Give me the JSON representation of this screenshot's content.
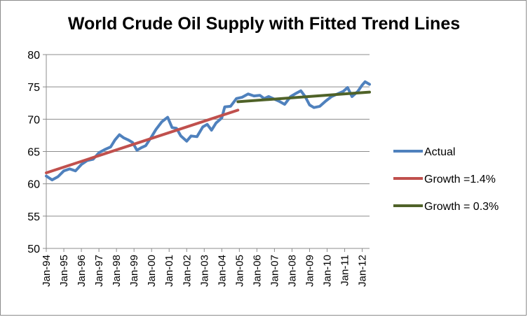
{
  "chart_data": {
    "type": "line",
    "title": "World Crude Oil Supply with Fitted Trend Lines",
    "xlabel": "",
    "ylabel": "",
    "ylim": [
      50,
      80
    ],
    "yticks": [
      50,
      55,
      60,
      65,
      70,
      75,
      80
    ],
    "xlim": [
      "1994-01",
      "2012-06"
    ],
    "xtick_labels": [
      "Jan-94",
      "Jan-95",
      "Jan-96",
      "Jan-97",
      "Jan-98",
      "Jan-99",
      "Jan-00",
      "Jan-01",
      "Jan-02",
      "Jan-03",
      "Jan-04",
      "Jan-05",
      "Jan-06",
      "Jan-07",
      "Jan-08",
      "Jan-09",
      "Jan-10",
      "Jan-11",
      "Jan-12"
    ],
    "xtick_dates": [
      "1994-01",
      "1995-01",
      "1996-01",
      "1997-01",
      "1998-01",
      "1999-01",
      "2000-01",
      "2001-01",
      "2002-01",
      "2003-01",
      "2004-01",
      "2005-01",
      "2006-01",
      "2007-01",
      "2008-01",
      "2009-01",
      "2010-01",
      "2011-01",
      "2012-01"
    ],
    "grid": "horizontal",
    "legend": "right",
    "series": [
      {
        "name": "Actual",
        "color": "#4f81bd",
        "points": [
          [
            "1994-01",
            61.2
          ],
          [
            "1994-05",
            60.6
          ],
          [
            "1994-09",
            61.1
          ],
          [
            "1995-01",
            62.0
          ],
          [
            "1995-05",
            62.3
          ],
          [
            "1995-09",
            62.0
          ],
          [
            "1996-01",
            63.0
          ],
          [
            "1996-05",
            63.6
          ],
          [
            "1996-09",
            63.8
          ],
          [
            "1997-01",
            64.8
          ],
          [
            "1997-05",
            65.3
          ],
          [
            "1997-09",
            65.7
          ],
          [
            "1997-12",
            66.8
          ],
          [
            "1998-03",
            67.6
          ],
          [
            "1998-06",
            67.1
          ],
          [
            "1998-09",
            66.8
          ],
          [
            "1998-12",
            66.4
          ],
          [
            "1999-03",
            65.2
          ],
          [
            "1999-06",
            65.6
          ],
          [
            "1999-09",
            65.9
          ],
          [
            "2000-01",
            67.3
          ],
          [
            "2000-04",
            68.4
          ],
          [
            "2000-08",
            69.6
          ],
          [
            "2000-12",
            70.3
          ],
          [
            "2001-03",
            68.7
          ],
          [
            "2001-06",
            68.6
          ],
          [
            "2001-09",
            67.4
          ],
          [
            "2002-01",
            66.6
          ],
          [
            "2002-04",
            67.4
          ],
          [
            "2002-08",
            67.3
          ],
          [
            "2002-12",
            68.8
          ],
          [
            "2003-03",
            69.2
          ],
          [
            "2003-06",
            68.3
          ],
          [
            "2003-09",
            69.4
          ],
          [
            "2004-01",
            70.2
          ],
          [
            "2004-03",
            71.9
          ],
          [
            "2004-07",
            72.0
          ],
          [
            "2004-11",
            73.2
          ],
          [
            "2005-03",
            73.4
          ],
          [
            "2005-07",
            73.9
          ],
          [
            "2005-11",
            73.6
          ],
          [
            "2006-03",
            73.7
          ],
          [
            "2006-06",
            73.2
          ],
          [
            "2006-09",
            73.5
          ],
          [
            "2007-01",
            73.1
          ],
          [
            "2007-04",
            72.8
          ],
          [
            "2007-08",
            72.3
          ],
          [
            "2007-12",
            73.5
          ],
          [
            "2008-03",
            73.9
          ],
          [
            "2008-07",
            74.4
          ],
          [
            "2008-10",
            73.5
          ],
          [
            "2009-01",
            72.2
          ],
          [
            "2009-04",
            71.8
          ],
          [
            "2009-08",
            72.0
          ],
          [
            "2009-12",
            72.8
          ],
          [
            "2010-04",
            73.5
          ],
          [
            "2010-08",
            73.9
          ],
          [
            "2010-12",
            74.3
          ],
          [
            "2011-03",
            74.9
          ],
          [
            "2011-06",
            73.5
          ],
          [
            "2011-10",
            74.3
          ],
          [
            "2012-01",
            75.3
          ],
          [
            "2012-03",
            75.8
          ],
          [
            "2012-06",
            75.4
          ]
        ]
      },
      {
        "name": "Growth =1.4%",
        "color": "#c0504d",
        "points": [
          [
            "1994-01",
            61.7
          ],
          [
            "2004-12",
            71.4
          ]
        ]
      },
      {
        "name": "Growth = 0.3%",
        "color": "#4f6228",
        "points": [
          [
            "2004-12",
            72.7
          ],
          [
            "2012-06",
            74.2
          ]
        ]
      }
    ]
  }
}
